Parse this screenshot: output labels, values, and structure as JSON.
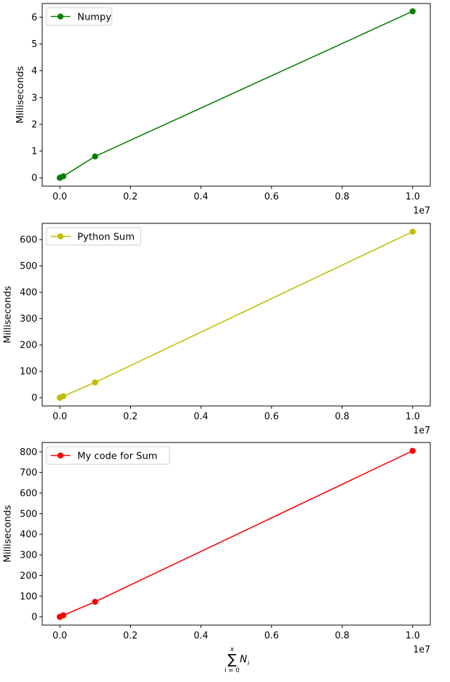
{
  "chart_data": [
    {
      "type": "line",
      "ylabel": "Milliseconds",
      "xlabel": "",
      "x_offset_label": "1e7",
      "xlim": [
        -0.05,
        1.05
      ],
      "ylim": [
        -0.31,
        6.51
      ],
      "xticks": [
        0.0,
        0.2,
        0.4,
        0.6,
        0.8,
        1.0
      ],
      "xtick_labels": [
        "0.0",
        "0.2",
        "0.4",
        "0.6",
        "0.8",
        "1.0"
      ],
      "yticks": [
        0,
        1,
        2,
        3,
        4,
        5,
        6
      ],
      "ytick_labels": [
        "0",
        "1",
        "2",
        "3",
        "4",
        "5",
        "6"
      ],
      "legend_position": "upper-left",
      "grid": false,
      "series": [
        {
          "name": "Numpy",
          "color": "#008000",
          "marker": "circle",
          "x": [
            0.0,
            1e-05,
            0.0001,
            0.001,
            0.01,
            0.1,
            1.0
          ],
          "y": [
            0.002,
            0.003,
            0.005,
            0.01,
            0.06,
            0.8,
            6.22
          ]
        }
      ]
    },
    {
      "type": "line",
      "ylabel": "Milliseconds",
      "xlabel": "",
      "x_offset_label": "1e7",
      "xlim": [
        -0.05,
        1.05
      ],
      "ylim": [
        -31.5,
        661.5
      ],
      "xticks": [
        0.0,
        0.2,
        0.4,
        0.6,
        0.8,
        1.0
      ],
      "xtick_labels": [
        "0.0",
        "0.2",
        "0.4",
        "0.6",
        "0.8",
        "1.0"
      ],
      "yticks": [
        0,
        100,
        200,
        300,
        400,
        500,
        600
      ],
      "ytick_labels": [
        "0",
        "100",
        "200",
        "300",
        "400",
        "500",
        "600"
      ],
      "legend_position": "upper-left",
      "grid": false,
      "series": [
        {
          "name": "Python Sum",
          "color": "#bfbf00",
          "marker": "circle",
          "x": [
            0.0,
            1e-05,
            0.0001,
            0.001,
            0.01,
            0.1,
            1.0
          ],
          "y": [
            0.005,
            0.01,
            0.06,
            0.6,
            5.8,
            58,
            630
          ]
        }
      ]
    },
    {
      "type": "line",
      "ylabel": "Milliseconds",
      "xlabel": "∑ N_i, i=0..x",
      "xlabel_parts": {
        "symbol": "∑",
        "upper": "x",
        "lower": "i = 0",
        "var": "N",
        "sub": "i"
      },
      "x_offset_label": "1e7",
      "xlim": [
        -0.05,
        1.05
      ],
      "ylim": [
        -40.25,
        845.25
      ],
      "xticks": [
        0.0,
        0.2,
        0.4,
        0.6,
        0.8,
        1.0
      ],
      "xtick_labels": [
        "0.0",
        "0.2",
        "0.4",
        "0.6",
        "0.8",
        "1.0"
      ],
      "yticks": [
        0,
        100,
        200,
        300,
        400,
        500,
        600,
        700,
        800
      ],
      "ytick_labels": [
        "0",
        "100",
        "200",
        "300",
        "400",
        "500",
        "600",
        "700",
        "800"
      ],
      "legend_position": "upper-left",
      "grid": false,
      "series": [
        {
          "name": "My code for Sum",
          "color": "#ff0000",
          "marker": "circle",
          "x": [
            0.0,
            1e-05,
            0.0001,
            0.001,
            0.01,
            0.1,
            1.0
          ],
          "y": [
            0.006,
            0.01,
            0.08,
            0.8,
            7.5,
            73,
            805
          ]
        }
      ]
    }
  ]
}
